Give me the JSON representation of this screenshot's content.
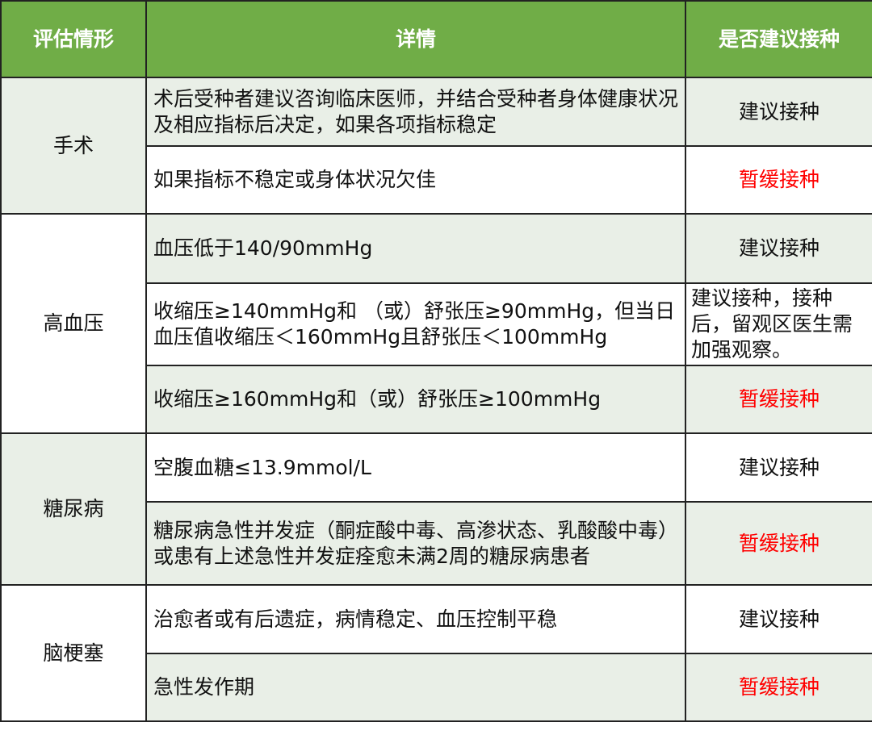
{
  "header": {
    "col1": "评估情形",
    "col2": "详情",
    "col3": "是否建议接种"
  },
  "colors": {
    "header_bg": "#70ad47",
    "alt_row": "#e9efe7",
    "defer_text": "#ff0000"
  },
  "groups": [
    {
      "name": "手术",
      "rows": [
        {
          "detail": "术后受种者建议咨询临床医师，并结合受种者身体健康状况及相应指标后决定，如果各项指标稳定",
          "rec": "建议接种",
          "defer": false
        },
        {
          "detail": "如果指标不稳定或身体状况欠佳",
          "rec": "暂缓接种",
          "defer": true
        }
      ]
    },
    {
      "name": "高血压",
      "rows": [
        {
          "detail": "血压低于140/90mmHg",
          "rec": "建议接种",
          "defer": false
        },
        {
          "detail": "收缩压≥140mmHg和 （或）舒张压≥90mmHg，但当日血压值收缩压＜160mmHg且舒张压＜100mmHg",
          "rec": "建议接种，接种后，留观区医生需加强观察。",
          "defer": false
        },
        {
          "detail": "收缩压≥160mmHg和（或）舒张压≥100mmHg",
          "rec": "暂缓接种",
          "defer": true
        }
      ]
    },
    {
      "name": "糖尿病",
      "rows": [
        {
          "detail": "空腹血糖≤13.9mmol/L",
          "rec": "建议接种",
          "defer": false
        },
        {
          "detail": "糖尿病急性并发症（酮症酸中毒、高渗状态、乳酸酸中毒）或患有上述急性并发症痊愈未满2周的糖尿病患者",
          "rec": "暂缓接种",
          "defer": true
        }
      ]
    },
    {
      "name": "脑梗塞",
      "rows": [
        {
          "detail": "治愈者或有后遗症，病情稳定、血压控制平稳",
          "rec": "建议接种",
          "defer": false
        },
        {
          "detail": "急性发作期",
          "rec": "暂缓接种",
          "defer": true
        }
      ]
    }
  ]
}
